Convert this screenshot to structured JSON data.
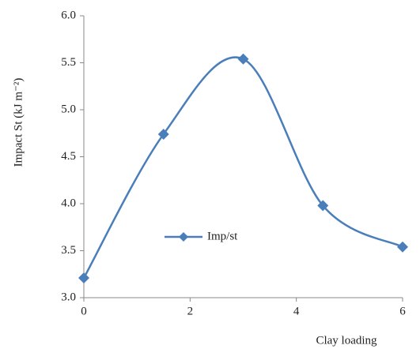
{
  "chart_data": {
    "type": "line",
    "x_label": "Clay loading",
    "y_label": "Impact St (kJ m⁻²)",
    "x": [
      0,
      1.5,
      3,
      4.5,
      6
    ],
    "series": [
      {
        "name": "Imp/st",
        "color": "#4a7ebb",
        "values": [
          3.21,
          4.74,
          5.54,
          3.98,
          3.54
        ]
      }
    ],
    "xlim": [
      0,
      6
    ],
    "xticks": [
      0,
      2,
      4,
      6
    ],
    "ylim": [
      3,
      6
    ],
    "yticks": [
      {
        "value": 3,
        "label": "3.0"
      },
      {
        "value": 3.5,
        "label": "3.5"
      },
      {
        "value": 4,
        "label": "4.0"
      },
      {
        "value": 4.5,
        "label": "4.5"
      },
      {
        "value": 5,
        "label": "5.0"
      },
      {
        "value": 5.5,
        "label": "5.5"
      },
      {
        "value": 6,
        "label": "6.0"
      }
    ],
    "grid": false,
    "smooth": true
  }
}
